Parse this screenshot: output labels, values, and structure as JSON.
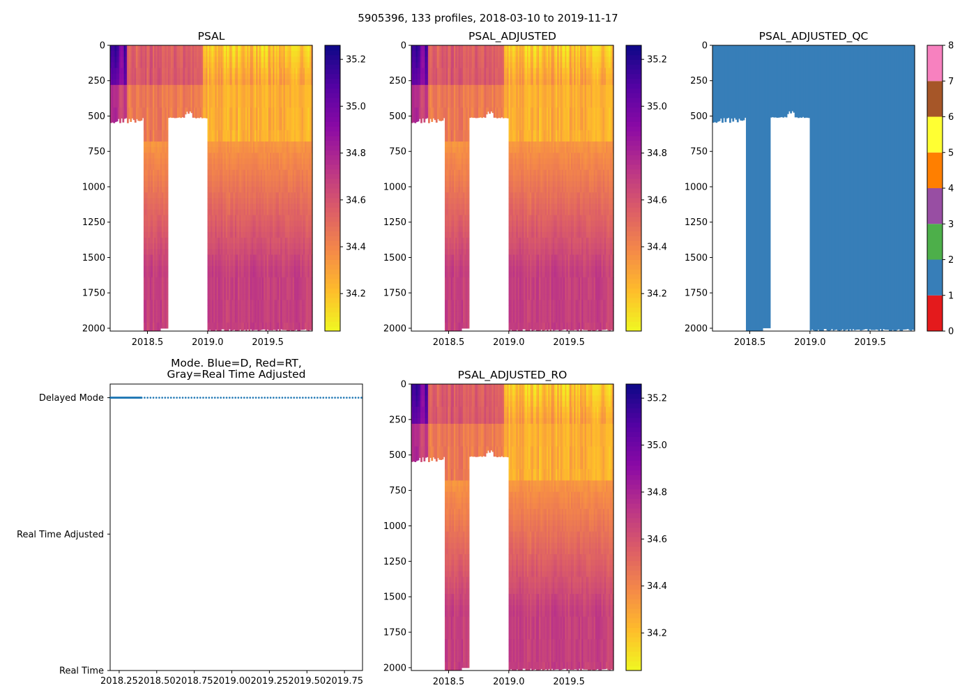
{
  "chart_data": {
    "title": "5905396, 133 profiles, 2018-03-10 to 2019-11-17",
    "float_id": "5905396",
    "profile_count": 133,
    "date_range": [
      "2018-03-10",
      "2019-11-17"
    ],
    "panels": [
      {
        "id": "psal",
        "type": "heatmap",
        "title": "PSAL",
        "xlim": [
          2018.19,
          2019.87
        ],
        "ylim": [
          2020,
          0
        ],
        "y_ticks": [
          0,
          250,
          500,
          750,
          1000,
          1250,
          1500,
          1750,
          2000
        ],
        "y_tick_labels": [
          "0",
          "250",
          "500",
          "750",
          "1000",
          "1250",
          "1500",
          "1750",
          "2000"
        ],
        "x_ticks": [
          2018.5,
          2019.0,
          2019.5
        ],
        "x_tick_labels": [
          "2018.5",
          "2019.0",
          "2019.5"
        ],
        "colorbar": {
          "colormap": "plasma_r",
          "vmin": 34.04,
          "vmax": 35.26,
          "ticks": [
            34.2,
            34.4,
            34.6,
            34.8,
            35.0,
            35.2
          ],
          "tick_labels": [
            "34.2",
            "34.4",
            "34.6",
            "34.8",
            "35.0",
            "35.2"
          ]
        }
      },
      {
        "id": "psal-adjusted",
        "type": "heatmap",
        "title": "PSAL_ADJUSTED",
        "xlim": [
          2018.19,
          2019.87
        ],
        "ylim": [
          2020,
          0
        ],
        "y_ticks": [
          0,
          250,
          500,
          750,
          1000,
          1250,
          1500,
          1750,
          2000
        ],
        "y_tick_labels": [
          "0",
          "250",
          "500",
          "750",
          "1000",
          "1250",
          "1500",
          "1750",
          "2000"
        ],
        "x_ticks": [
          2018.5,
          2019.0,
          2019.5
        ],
        "x_tick_labels": [
          "2018.5",
          "2019.0",
          "2019.5"
        ],
        "colorbar": {
          "colormap": "plasma_r",
          "vmin": 34.04,
          "vmax": 35.26,
          "ticks": [
            34.2,
            34.4,
            34.6,
            34.8,
            35.0,
            35.2
          ],
          "tick_labels": [
            "34.2",
            "34.4",
            "34.6",
            "34.8",
            "35.0",
            "35.2"
          ]
        }
      },
      {
        "id": "psal-adjusted-qc",
        "type": "heatmap",
        "title": "PSAL_ADJUSTED_QC",
        "xlim": [
          2018.19,
          2019.87
        ],
        "ylim": [
          2020,
          0
        ],
        "y_ticks": [
          0,
          250,
          500,
          750,
          1000,
          1250,
          1500,
          1750,
          2000
        ],
        "y_tick_labels": [
          "0",
          "250",
          "500",
          "750",
          "1000",
          "1250",
          "1500",
          "1750",
          "2000"
        ],
        "x_ticks": [
          2018.5,
          2019.0,
          2019.5
        ],
        "x_tick_labels": [
          "2018.5",
          "2019.0",
          "2019.5"
        ],
        "qc_value_shown": 1,
        "colorbar": {
          "colormap": "Set1",
          "vmin": 0,
          "vmax": 8,
          "ticks": [
            0,
            1,
            2,
            3,
            4,
            5,
            6,
            7,
            8
          ],
          "tick_labels": [
            "0",
            "1",
            "2",
            "3",
            "4",
            "5",
            "6",
            "7",
            "8"
          ],
          "segment_colors": [
            "#e41a1c",
            "#377eb8",
            "#4daf4a",
            "#984ea3",
            "#ff7f00",
            "#ffff33",
            "#a65628",
            "#f781bf",
            "#999999"
          ]
        }
      },
      {
        "id": "mode",
        "type": "scatter",
        "title_lines": [
          "Mode. Blue=D, Red=RT,",
          "Gray=Real Time Adjusted"
        ],
        "xlim": [
          2018.19,
          2019.87
        ],
        "ylim": [
          0,
          2.1
        ],
        "y_ticks": [
          0,
          1,
          2
        ],
        "y_tick_labels": [
          "Real Time",
          "Real Time Adjusted",
          "Delayed Mode"
        ],
        "x_ticks": [
          2018.25,
          2018.5,
          2018.75,
          2019.0,
          2019.25,
          2019.5,
          2019.75
        ],
        "x_tick_labels": [
          "2018.25",
          "2018.50",
          "2018.75",
          "2019.00",
          "2019.25",
          "2019.50",
          "2019.75"
        ],
        "series": [
          {
            "name": "Delayed Mode (D)",
            "color": "#1f77b4",
            "y": 2,
            "x_dense_range": [
              2018.19,
              2018.4
            ],
            "x_sparse_range": [
              2018.4,
              2019.87
            ]
          }
        ]
      },
      {
        "id": "psal-adjusted-ro",
        "type": "heatmap",
        "title": "PSAL_ADJUSTED_RO",
        "xlim": [
          2018.19,
          2019.87
        ],
        "ylim": [
          2020,
          0
        ],
        "y_ticks": [
          0,
          250,
          500,
          750,
          1000,
          1250,
          1500,
          1750,
          2000
        ],
        "y_tick_labels": [
          "0",
          "250",
          "500",
          "750",
          "1000",
          "1250",
          "1500",
          "1750",
          "2000"
        ],
        "x_ticks": [
          2018.5,
          2019.0,
          2019.5
        ],
        "x_tick_labels": [
          "2018.5",
          "2019.0",
          "2019.5"
        ],
        "colorbar": {
          "colormap": "plasma_r",
          "vmin": 34.04,
          "vmax": 35.26,
          "ticks": [
            34.2,
            34.4,
            34.6,
            34.8,
            35.0,
            35.2
          ],
          "tick_labels": [
            "34.2",
            "34.4",
            "34.6",
            "34.8",
            "35.0",
            "35.2"
          ]
        }
      }
    ],
    "data_gaps": [
      {
        "x_range": [
          2018.19,
          2018.46
        ],
        "depth_range": [
          510,
          2020
        ],
        "note": "shallow profiles, except thin columns"
      },
      {
        "x_range": [
          2018.66,
          2018.99
        ],
        "depth_range": [
          500,
          2020
        ],
        "note": "no deep data"
      }
    ],
    "salinity_structure": {
      "surface_fresh_band_depth": 300,
      "deep_value": 34.68,
      "early_salty_max": 35.2
    }
  }
}
